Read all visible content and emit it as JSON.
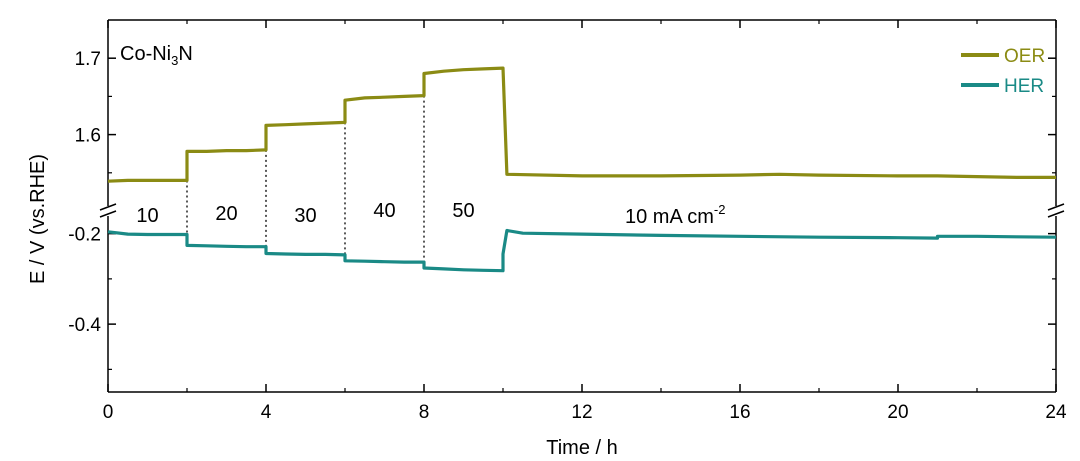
{
  "chart_data": {
    "type": "line",
    "panel_label": "Co-Ni",
    "panel_label_sub": "3",
    "panel_label_end": "N",
    "xlabel": "Time / h",
    "ylabel": "E / V (vs.RHE)",
    "xlim": [
      0,
      24
    ],
    "x_ticks": [
      0,
      4,
      8,
      12,
      16,
      20,
      24
    ],
    "y_ticks_upper": [
      "1.6",
      "1.7"
    ],
    "y_ticks_lower": [
      "-0.2",
      "-0.4"
    ],
    "legend_position": "top-right",
    "colors": {
      "OER": "#8b8b14",
      "HER": "#1a8a86"
    },
    "series": [
      {
        "name": "OER",
        "x": [
          0,
          0.5,
          1,
          1.5,
          2.0,
          2.0,
          2.5,
          3,
          3.5,
          4.0,
          4.0,
          4.5,
          5,
          5.5,
          6.0,
          6.0,
          6.5,
          7,
          7.5,
          8.0,
          8.0,
          8.5,
          9,
          9.5,
          10.0,
          10.1,
          12,
          14,
          16,
          17,
          18,
          20,
          21,
          22,
          23,
          24
        ],
        "y": [
          1.539,
          1.54,
          1.54,
          1.54,
          1.54,
          1.578,
          1.578,
          1.579,
          1.579,
          1.58,
          1.612,
          1.613,
          1.614,
          1.615,
          1.616,
          1.645,
          1.648,
          1.649,
          1.65,
          1.651,
          1.68,
          1.683,
          1.685,
          1.686,
          1.687,
          1.548,
          1.546,
          1.546,
          1.547,
          1.548,
          1.547,
          1.546,
          1.546,
          1.545,
          1.544,
          1.544
        ]
      },
      {
        "name": "HER",
        "x": [
          0,
          0.5,
          1,
          1.5,
          2.0,
          2.0,
          2.5,
          3,
          3.5,
          4.0,
          4.0,
          4.5,
          5,
          5.5,
          6.0,
          6.0,
          6.5,
          7,
          7.5,
          8.0,
          8.0,
          8.5,
          9,
          9.5,
          10.0,
          10.0,
          10.1,
          10.5,
          12,
          14,
          16,
          18,
          20,
          21.0,
          21.0,
          22,
          23,
          24
        ],
        "y": [
          -0.196,
          -0.201,
          -0.202,
          -0.202,
          -0.202,
          -0.226,
          -0.227,
          -0.228,
          -0.229,
          -0.229,
          -0.244,
          -0.245,
          -0.246,
          -0.246,
          -0.247,
          -0.26,
          -0.261,
          -0.262,
          -0.263,
          -0.263,
          -0.276,
          -0.278,
          -0.28,
          -0.281,
          -0.282,
          -0.245,
          -0.193,
          -0.199,
          -0.201,
          -0.204,
          -0.206,
          -0.208,
          -0.209,
          -0.21,
          -0.206,
          -0.206,
          -0.207,
          -0.208
        ]
      }
    ],
    "segment_annotations": [
      {
        "text": "10",
        "x": 1.0
      },
      {
        "text": "20",
        "x": 3.0
      },
      {
        "text": "30",
        "x": 5.0
      },
      {
        "text": "40",
        "x": 7.0
      },
      {
        "text": "50",
        "x": 9.0
      }
    ],
    "segment_dividers": [
      2,
      4,
      6,
      8
    ],
    "current_label": "10 mA cm",
    "current_label_sup": "-2"
  }
}
